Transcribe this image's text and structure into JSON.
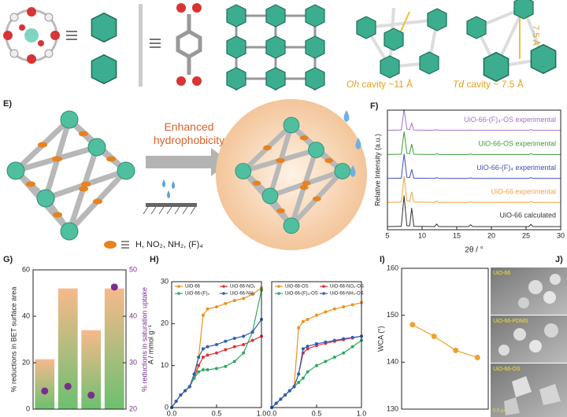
{
  "figure": {
    "oh_symbol": "Oh",
    "oh_text": "cavity ~11 Å",
    "td_symbol": "Td",
    "td_text": "cavity ~ 7.5 Å",
    "td_distance": "7.5 Å",
    "panel_e": "E)",
    "panel_f": "F)",
    "panel_g": "G)",
    "panel_h": "H)",
    "panel_i": "I)",
    "panel_j": "J)",
    "arrow_text": [
      "Enhanced",
      "hydrophobicity"
    ],
    "substituents": "H, NO₂, NH₂, (F)₄",
    "sem_labels": [
      "UiO-66",
      "UiO-66-PDMS",
      "UiO-66-OS"
    ],
    "scale_bar": "0.5 μm"
  },
  "chart_data": [
    {
      "type": "spectra",
      "xlabel": "2θ / °",
      "ylabel": "Relative Intensity (a.u.)",
      "x": [
        5,
        7.0,
        7.4,
        7.8,
        8.2,
        8.5,
        8.8,
        11.8,
        12.1,
        12.4,
        16.7,
        17.0,
        17.3,
        25.4,
        25.7,
        26.0,
        30
      ],
      "xlim": [
        5,
        30
      ],
      "xticks": [
        5,
        10,
        15,
        20,
        25,
        30
      ],
      "series": [
        {
          "name": "UiO-66-(F)₄-OS experimental",
          "color": "#a66fc8",
          "values": [
            2,
            3,
            70,
            6,
            4,
            25,
            3,
            2,
            4,
            2,
            2,
            3,
            2,
            2,
            4,
            2,
            2
          ]
        },
        {
          "name": "UiO-66-OS experimental",
          "color": "#3c9e3c",
          "values": [
            1,
            2,
            75,
            5,
            4,
            35,
            2,
            1,
            4,
            1,
            1,
            3,
            1,
            1,
            4,
            1,
            1
          ]
        },
        {
          "name": "UiO-66-(F)₄ experimental",
          "color": "#3f4fb5",
          "values": [
            1,
            2,
            80,
            5,
            4,
            30,
            2,
            1,
            4,
            1,
            1,
            3,
            1,
            1,
            4,
            1,
            1
          ]
        },
        {
          "name": "UiO-66 experimental",
          "color": "#f2a23c",
          "values": [
            1,
            2,
            85,
            6,
            4,
            35,
            2,
            1,
            5,
            1,
            1,
            3,
            1,
            1,
            4,
            1,
            1
          ]
        },
        {
          "name": "UiO-66 calculated",
          "color": "#333333",
          "values": [
            0,
            1,
            100,
            3,
            2,
            60,
            1,
            0,
            8,
            0,
            0,
            6,
            0,
            0,
            7,
            0,
            0
          ]
        }
      ]
    },
    {
      "type": "bar",
      "ylabel": "% reductions in BET surface area",
      "y2label": "% reductions in saturation uptake",
      "categories": [
        null,
        null,
        null,
        null
      ],
      "ylim": [
        0,
        60
      ],
      "yticks": [
        0,
        20,
        40,
        60
      ],
      "y2lim": [
        20,
        50
      ],
      "y2ticks": [
        20,
        30,
        40,
        50
      ],
      "series": [
        {
          "color": "#f7b98c",
          "values": [
            21.5,
            52,
            34,
            52
          ]
        },
        {
          "color": "#7b2d8e",
          "axis": "y2",
          "values": [
            23.9,
            24.9,
            23,
            46.3
          ]
        }
      ]
    },
    {
      "type": "line",
      "ylabel": "A / mmol g⁻¹",
      "x": [
        0,
        0.05,
        0.1,
        0.15,
        0.2,
        0.25,
        0.3,
        0.35,
        0.4,
        0.5,
        0.6,
        0.7,
        0.8,
        0.9,
        1.0
      ],
      "xlim": [
        0,
        1
      ],
      "xticks": [
        {
          "value": 0,
          "label": "0.0"
        },
        {
          "value": 0.5,
          "label": "0.5"
        },
        {
          "value": 1,
          "label": "1.0"
        }
      ],
      "ylim": [
        0,
        30
      ],
      "yticks": [
        0,
        10,
        20,
        30
      ],
      "series": [
        {
          "name": "UiO-66",
          "color": "#f0901e",
          "values": [
            0,
            1.5,
            3,
            4,
            5,
            7,
            12,
            22,
            23.5,
            24,
            24.8,
            25.5,
            26,
            27,
            28.5
          ]
        },
        {
          "name": "UiO-66-NO₂",
          "color": "#e0303a",
          "values": [
            0,
            1.5,
            3,
            4,
            5,
            7,
            10,
            12,
            12.5,
            13,
            13.8,
            14.5,
            15,
            16,
            17
          ]
        },
        {
          "name": "UiO-66-(F)₄",
          "color": "#2fa860",
          "values": [
            0,
            1.5,
            3,
            4,
            5,
            7,
            8.5,
            9,
            9,
            9.3,
            9.8,
            11,
            13,
            18,
            28
          ]
        },
        {
          "name": "UiO-66-NH₂",
          "color": "#2d5fb5",
          "values": [
            0,
            1.5,
            3,
            4,
            5,
            8,
            12,
            14,
            14.5,
            15,
            15.8,
            16.5,
            17,
            18,
            21
          ]
        }
      ]
    },
    {
      "type": "line",
      "x": [
        0,
        0.05,
        0.1,
        0.15,
        0.2,
        0.25,
        0.3,
        0.35,
        0.4,
        0.5,
        0.6,
        0.7,
        0.8,
        0.9,
        1.0
      ],
      "xlim": [
        0,
        1
      ],
      "xticks": [
        {
          "value": 0,
          "label": "0.0"
        },
        {
          "value": 0.5,
          "label": "0.5"
        },
        {
          "value": 1,
          "label": "1.0"
        }
      ],
      "ylim": [
        0,
        30
      ],
      "series": [
        {
          "name": "UiO-66-OS",
          "color": "#f0901e",
          "values": [
            0,
            1,
            2,
            3,
            4,
            5,
            19,
            20.5,
            21,
            22,
            22.8,
            23.5,
            24,
            24.5,
            25
          ]
        },
        {
          "name": "UiO-66-NO₂-OS",
          "color": "#e0303a",
          "values": [
            0,
            1,
            2,
            3,
            4,
            5,
            8,
            13,
            14,
            14.8,
            15.3,
            15.8,
            16.2,
            16.6,
            17
          ]
        },
        {
          "name": "UiO-66-(F)₄-OS",
          "color": "#2fa860",
          "values": [
            0,
            1,
            2,
            3,
            4,
            5,
            6,
            7,
            8.5,
            10,
            11,
            12,
            13,
            14.5,
            16
          ]
        },
        {
          "name": "UiO-66-NH₂-OS",
          "color": "#2d5fb5",
          "values": [
            0,
            1,
            2,
            3,
            4,
            5,
            8,
            14,
            14.6,
            15.2,
            15.6,
            16,
            16.4,
            16.7,
            17
          ]
        }
      ]
    },
    {
      "type": "line",
      "ylabel": "WCA (°)",
      "categories": [
        null,
        null,
        null,
        null
      ],
      "values": [
        148,
        145.5,
        142.5,
        141
      ],
      "color": "#f0a030",
      "ylim": [
        130,
        160
      ],
      "yticks": [
        130,
        140,
        150,
        160
      ]
    }
  ]
}
